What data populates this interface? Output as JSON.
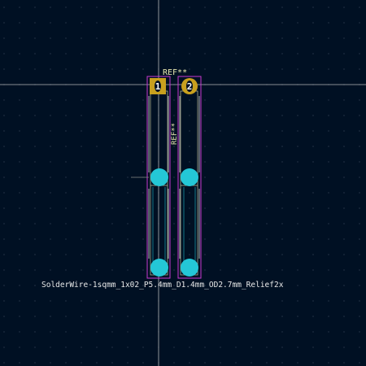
{
  "footprint": {
    "reference": "REF**",
    "reference_fab": "REF**",
    "value": "SolderWire-1sqmm_1x02_P5.4mm_D1.4mm_OD2.7mm_Relief2x",
    "pads": [
      {
        "number": "1",
        "shape": "square"
      },
      {
        "number": "2",
        "shape": "round"
      }
    ]
  },
  "colors": {
    "background": "#001023",
    "grid": "#3c4a5f",
    "crosshair": "#c8c8c8",
    "pad_tht": "#c8a01e",
    "pad_smd": "#24c7d6",
    "courtyard": "#c83ad0",
    "fab": "#bfbf9a",
    "silkscreen": "#d8d8d8",
    "value_text": "#e8e8e8",
    "reference_text": "#e8e8b0"
  }
}
